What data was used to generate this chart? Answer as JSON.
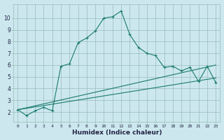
{
  "xlabel": "Humidex (Indice chaleur)",
  "bg_color": "#cce8ee",
  "grid_color": "#99bbbb",
  "line_color": "#1a7a6e",
  "xlim": [
    -0.5,
    23.5
  ],
  "ylim": [
    1.2,
    11.2
  ],
  "xticks": [
    0,
    1,
    2,
    3,
    4,
    5,
    6,
    7,
    8,
    9,
    10,
    11,
    12,
    13,
    14,
    15,
    16,
    17,
    18,
    19,
    20,
    21,
    22,
    23
  ],
  "yticks": [
    2,
    3,
    4,
    5,
    6,
    7,
    8,
    9,
    10
  ],
  "curve1_x": [
    0,
    1,
    2,
    3,
    4,
    5,
    6,
    7,
    8,
    9,
    10,
    11,
    12,
    13,
    14,
    15,
    16,
    17,
    18,
    19,
    20,
    21,
    22,
    23
  ],
  "curve1_y": [
    2.2,
    1.7,
    2.1,
    2.4,
    2.1,
    5.9,
    6.1,
    7.9,
    8.3,
    8.9,
    10.0,
    10.1,
    10.6,
    8.6,
    7.5,
    7.0,
    6.8,
    5.8,
    5.9,
    5.5,
    5.8,
    4.6,
    5.9,
    4.5
  ],
  "curve2_x": [
    0,
    23
  ],
  "curve2_y": [
    2.2,
    6.0
  ],
  "curve3_x": [
    0,
    23
  ],
  "curve3_y": [
    2.2,
    4.9
  ]
}
